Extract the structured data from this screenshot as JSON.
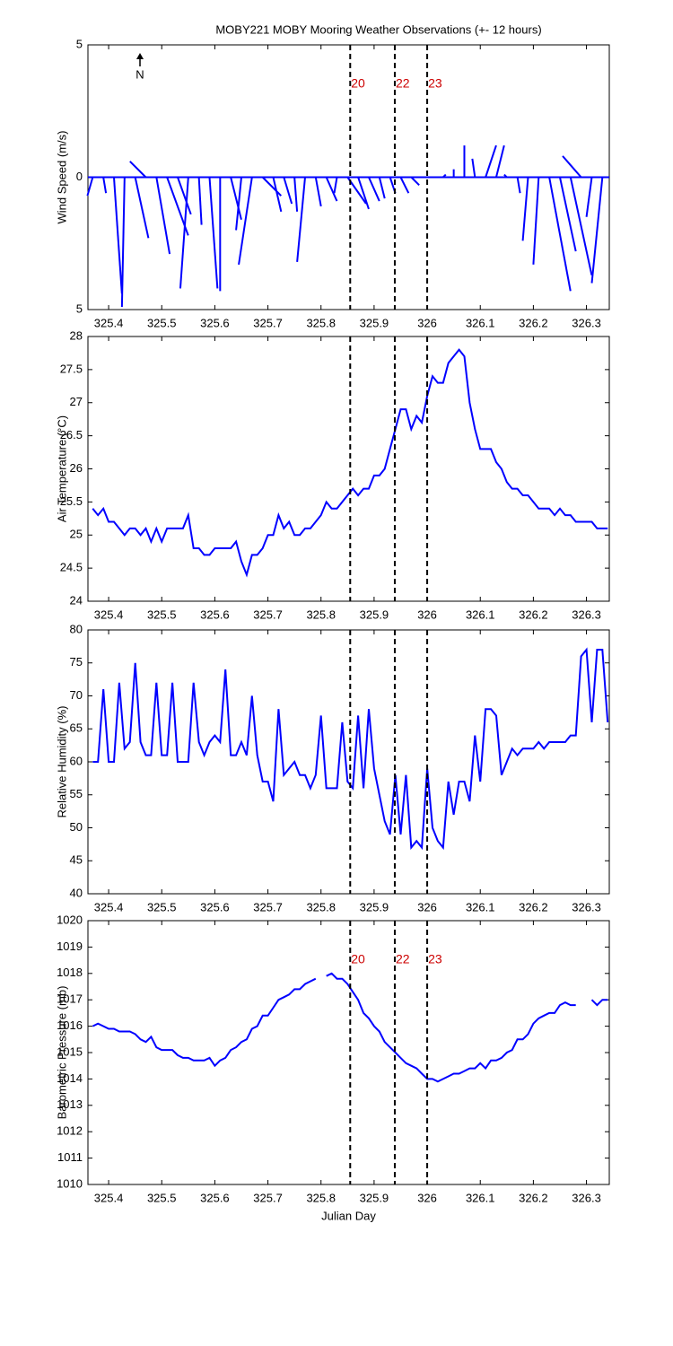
{
  "chart_data": [
    {
      "type": "stick",
      "title": "MOBY221 MOBY Mooring Weather Observations (+- 12 hours)",
      "ylabel": "Wind Speed (m/s)",
      "north_label": "N",
      "xlim": [
        325.361,
        326.343
      ],
      "ylim": [
        -5,
        5
      ],
      "xticks": [
        325.4,
        325.5,
        325.6,
        325.7,
        325.8,
        325.9,
        326,
        326.1,
        326.2,
        326.3
      ],
      "yticks": [
        {
          "value": -5,
          "label": "5"
        },
        0,
        5
      ],
      "markers": [
        {
          "x": 325.855,
          "label": "20"
        },
        {
          "x": 325.939,
          "label": "22"
        },
        {
          "x": 326.0,
          "label": "23"
        }
      ],
      "color": "#0000ff",
      "x": [
        325.37,
        325.39,
        325.41,
        325.43,
        325.45,
        325.47,
        325.49,
        325.51,
        325.53,
        325.55,
        325.57,
        325.59,
        325.61,
        325.63,
        325.65,
        325.67,
        325.69,
        325.71,
        325.73,
        325.75,
        325.77,
        325.79,
        325.81,
        325.83,
        325.85,
        325.87,
        325.89,
        325.91,
        325.93,
        325.95,
        325.97,
        325.99,
        326.01,
        326.03,
        326.05,
        326.07,
        326.09,
        326.11,
        326.13,
        326.15,
        326.17,
        326.19,
        326.21,
        326.23,
        326.25,
        326.27,
        326.29,
        326.31,
        326.33
      ],
      "u": [
        -0.2,
        0.1,
        0.3,
        -0.1,
        0.5,
        -0.6,
        0.5,
        0.8,
        0.5,
        -0.3,
        0.1,
        0.3,
        0.0,
        0.4,
        -0.2,
        -0.5,
        0.7,
        0.3,
        0.3,
        0.1,
        -0.3,
        0.2,
        0.4,
        -0.1,
        0.7,
        0.4,
        0.4,
        0.2,
        0.2,
        0.3,
        0.3,
        -0.3,
        0.1,
        0.1,
        0.0,
        0.0,
        -0.1,
        0.4,
        0.3,
        -0.1,
        0.1,
        -0.2,
        -0.2,
        0.8,
        0.6,
        0.8,
        -0.7,
        -0.2,
        -0.4
      ],
      "v": [
        -0.7,
        -0.6,
        -4.4,
        -4.9,
        -2.3,
        0.6,
        -2.9,
        -2.2,
        -1.4,
        -4.2,
        -1.8,
        -4.2,
        -4.3,
        -1.6,
        -2.0,
        -3.3,
        -0.7,
        -1.3,
        -1.0,
        -1.3,
        -3.2,
        -1.1,
        -0.9,
        -0.6,
        -1.0,
        -1.2,
        -0.9,
        -0.8,
        -0.6,
        -0.6,
        -0.3,
        0.0,
        0.0,
        0.1,
        0.3,
        1.2,
        0.7,
        1.2,
        1.2,
        0.1,
        -0.6,
        -2.4,
        -3.3,
        -4.3,
        -2.8,
        -3.7,
        0.8,
        -1.5,
        -4.0
      ]
    },
    {
      "type": "line",
      "ylabel": "Air Temperature (°C)",
      "xlim": [
        325.361,
        326.343
      ],
      "ylim": [
        24,
        28
      ],
      "xticks": [
        325.4,
        325.5,
        325.6,
        325.7,
        325.8,
        325.9,
        326,
        326.1,
        326.2,
        326.3
      ],
      "yticks": [
        24,
        24.5,
        25,
        25.5,
        26,
        26.5,
        27,
        27.5,
        28
      ],
      "markers": [
        {
          "x": 325.855
        },
        {
          "x": 325.939
        },
        {
          "x": 326.0
        }
      ],
      "color": "#0000ff",
      "x": [
        325.37,
        325.38,
        325.39,
        325.4,
        325.41,
        325.42,
        325.43,
        325.44,
        325.45,
        325.46,
        325.47,
        325.48,
        325.49,
        325.5,
        325.51,
        325.52,
        325.53,
        325.54,
        325.55,
        325.56,
        325.57,
        325.58,
        325.59,
        325.6,
        325.61,
        325.62,
        325.63,
        325.64,
        325.65,
        325.66,
        325.67,
        325.68,
        325.69,
        325.7,
        325.71,
        325.72,
        325.73,
        325.74,
        325.75,
        325.76,
        325.77,
        325.78,
        325.79,
        325.8,
        325.81,
        325.82,
        325.83,
        325.84,
        325.85,
        325.86,
        325.87,
        325.88,
        325.89,
        325.9,
        325.91,
        325.92,
        325.93,
        325.94,
        325.95,
        325.96,
        325.97,
        325.98,
        325.99,
        326.0,
        326.01,
        326.02,
        326.03,
        326.04,
        326.05,
        326.06,
        326.07,
        326.08,
        326.09,
        326.1,
        326.11,
        326.12,
        326.13,
        326.14,
        326.15,
        326.16,
        326.17,
        326.18,
        326.19,
        326.2,
        326.21,
        326.22,
        326.23,
        326.24,
        326.25,
        326.26,
        326.27,
        326.28,
        326.29,
        326.3,
        326.31,
        326.32,
        326.33,
        326.34
      ],
      "values": [
        25.4,
        25.3,
        25.4,
        25.2,
        25.2,
        25.1,
        25.0,
        25.1,
        25.1,
        25.0,
        25.1,
        24.9,
        25.1,
        24.9,
        25.1,
        25.1,
        25.1,
        25.1,
        25.3,
        24.8,
        24.8,
        24.7,
        24.7,
        24.8,
        24.8,
        24.8,
        24.8,
        24.9,
        24.6,
        24.4,
        24.7,
        24.7,
        24.8,
        25.0,
        25.0,
        25.3,
        25.1,
        25.2,
        25.0,
        25.0,
        25.1,
        25.1,
        25.2,
        25.3,
        25.5,
        25.4,
        25.4,
        25.5,
        25.6,
        25.7,
        25.6,
        25.7,
        25.7,
        25.9,
        25.9,
        26.0,
        26.3,
        26.6,
        26.9,
        26.9,
        26.6,
        26.8,
        26.7,
        27.1,
        27.4,
        27.3,
        27.3,
        27.6,
        27.7,
        27.8,
        27.7,
        27.0,
        26.6,
        26.3,
        26.3,
        26.3,
        26.1,
        26.0,
        25.8,
        25.7,
        25.7,
        25.6,
        25.6,
        25.5,
        25.4,
        25.4,
        25.4,
        25.3,
        25.4,
        25.3,
        25.3,
        25.2,
        25.2,
        25.2,
        25.2,
        25.1,
        25.1,
        25.1
      ]
    },
    {
      "type": "line",
      "ylabel": "Relative Humidity (%)",
      "xlim": [
        325.361,
        326.343
      ],
      "ylim": [
        40,
        80
      ],
      "xticks": [
        325.4,
        325.5,
        325.6,
        325.7,
        325.8,
        325.9,
        326,
        326.1,
        326.2,
        326.3
      ],
      "yticks": [
        40,
        45,
        50,
        55,
        60,
        65,
        70,
        75,
        80
      ],
      "markers": [
        {
          "x": 325.855
        },
        {
          "x": 325.939
        },
        {
          "x": 326.0
        }
      ],
      "color": "#0000ff",
      "x": [
        325.37,
        325.38,
        325.39,
        325.4,
        325.41,
        325.42,
        325.43,
        325.44,
        325.45,
        325.46,
        325.47,
        325.48,
        325.49,
        325.5,
        325.51,
        325.52,
        325.53,
        325.54,
        325.55,
        325.56,
        325.57,
        325.58,
        325.59,
        325.6,
        325.61,
        325.62,
        325.63,
        325.64,
        325.65,
        325.66,
        325.67,
        325.68,
        325.69,
        325.7,
        325.71,
        325.72,
        325.73,
        325.74,
        325.75,
        325.76,
        325.77,
        325.78,
        325.79,
        325.8,
        325.81,
        325.82,
        325.83,
        325.84,
        325.85,
        325.86,
        325.87,
        325.88,
        325.89,
        325.9,
        325.91,
        325.92,
        325.93,
        325.94,
        325.95,
        325.96,
        325.97,
        325.98,
        325.99,
        326.0,
        326.01,
        326.02,
        326.03,
        326.04,
        326.05,
        326.06,
        326.07,
        326.08,
        326.09,
        326.1,
        326.11,
        326.12,
        326.13,
        326.14,
        326.15,
        326.16,
        326.17,
        326.18,
        326.19,
        326.2,
        326.21,
        326.22,
        326.23,
        326.24,
        326.25,
        326.26,
        326.27,
        326.28,
        326.29,
        326.3,
        326.31,
        326.32,
        326.33,
        326.34
      ],
      "values": [
        60,
        60,
        71,
        60,
        60,
        72,
        62,
        63,
        75,
        63,
        61,
        61,
        72,
        61,
        61,
        72,
        60,
        60,
        60,
        72,
        63,
        61,
        63,
        64,
        63,
        74,
        61,
        61,
        63,
        61,
        70,
        61,
        57,
        57,
        54,
        68,
        58,
        59,
        60,
        58,
        58,
        56,
        58,
        67,
        56,
        56,
        56,
        66,
        57,
        56,
        67,
        56,
        68,
        59,
        55,
        51,
        49,
        58,
        49,
        58,
        47,
        48,
        47,
        59,
        50,
        48,
        47,
        57,
        52,
        57,
        57,
        54,
        64,
        57,
        68,
        68,
        67,
        58,
        60,
        62,
        61,
        62,
        62,
        62,
        63,
        62,
        63,
        63,
        63,
        63,
        64,
        64,
        76,
        77,
        66,
        77,
        77,
        66
      ]
    },
    {
      "type": "line",
      "ylabel": "Barometric Pressure (mb)",
      "xlabel": "Julian Day",
      "xlim": [
        325.361,
        326.343
      ],
      "ylim": [
        1010,
        1020
      ],
      "xticks": [
        325.4,
        325.5,
        325.6,
        325.7,
        325.8,
        325.9,
        326,
        326.1,
        326.2,
        326.3
      ],
      "yticks": [
        1010,
        1011,
        1012,
        1013,
        1014,
        1015,
        1016,
        1017,
        1018,
        1019,
        1020
      ],
      "markers": [
        {
          "x": 325.855,
          "label": "20"
        },
        {
          "x": 325.939,
          "label": "22"
        },
        {
          "x": 326.0,
          "label": "23"
        }
      ],
      "color": "#0000ff",
      "x": [
        325.37,
        325.38,
        325.39,
        325.4,
        325.41,
        325.42,
        325.43,
        325.44,
        325.45,
        325.46,
        325.47,
        325.48,
        325.49,
        325.5,
        325.51,
        325.52,
        325.53,
        325.54,
        325.55,
        325.56,
        325.57,
        325.58,
        325.59,
        325.6,
        325.61,
        325.62,
        325.63,
        325.64,
        325.65,
        325.66,
        325.67,
        325.68,
        325.69,
        325.7,
        325.71,
        325.72,
        325.73,
        325.74,
        325.75,
        325.76,
        325.77,
        325.78,
        325.79,
        325.8,
        325.81,
        325.82,
        325.83,
        325.84,
        325.85,
        325.86,
        325.87,
        325.88,
        325.89,
        325.9,
        325.91,
        325.92,
        325.93,
        325.94,
        325.95,
        325.96,
        325.97,
        325.98,
        325.99,
        326.0,
        326.01,
        326.02,
        326.03,
        326.04,
        326.05,
        326.06,
        326.07,
        326.08,
        326.09,
        326.1,
        326.11,
        326.12,
        326.13,
        326.14,
        326.15,
        326.16,
        326.17,
        326.18,
        326.19,
        326.2,
        326.21,
        326.22,
        326.23,
        326.24,
        326.25,
        326.26,
        326.27,
        326.28,
        326.29,
        326.3,
        326.31,
        326.32,
        326.33,
        326.34
      ],
      "values": [
        1016.0,
        1016.1,
        1016.0,
        1015.9,
        1015.9,
        1015.8,
        1015.8,
        1015.8,
        1015.7,
        1015.5,
        1015.4,
        1015.6,
        1015.2,
        1015.1,
        1015.1,
        1015.1,
        1014.9,
        1014.8,
        1014.8,
        1014.7,
        1014.7,
        1014.7,
        1014.8,
        1014.5,
        1014.7,
        1014.8,
        1015.1,
        1015.2,
        1015.4,
        1015.5,
        1015.9,
        1016.0,
        1016.4,
        1016.4,
        1016.7,
        1017.0,
        1017.1,
        1017.2,
        1017.4,
        1017.4,
        1017.6,
        1017.7,
        1017.8,
        null,
        1017.9,
        1018.0,
        1017.8,
        1017.8,
        1017.6,
        1017.3,
        1017.0,
        1016.5,
        1016.3,
        1016.0,
        1015.8,
        1015.4,
        1015.2,
        1015.0,
        1014.8,
        1014.6,
        1014.5,
        1014.4,
        1014.2,
        1014.0,
        1014.0,
        1013.9,
        1014.0,
        1014.1,
        1014.2,
        1014.2,
        1014.3,
        1014.4,
        1014.4,
        1014.6,
        1014.4,
        1014.7,
        1014.7,
        1014.8,
        1015.0,
        1015.1,
        1015.5,
        1015.5,
        1015.7,
        1016.1,
        1016.3,
        1016.4,
        1016.5,
        1016.5,
        1016.8,
        1016.9,
        1016.8,
        1016.8,
        null,
        null,
        1017.0,
        1016.8,
        1017.0,
        1017.0
      ]
    }
  ]
}
